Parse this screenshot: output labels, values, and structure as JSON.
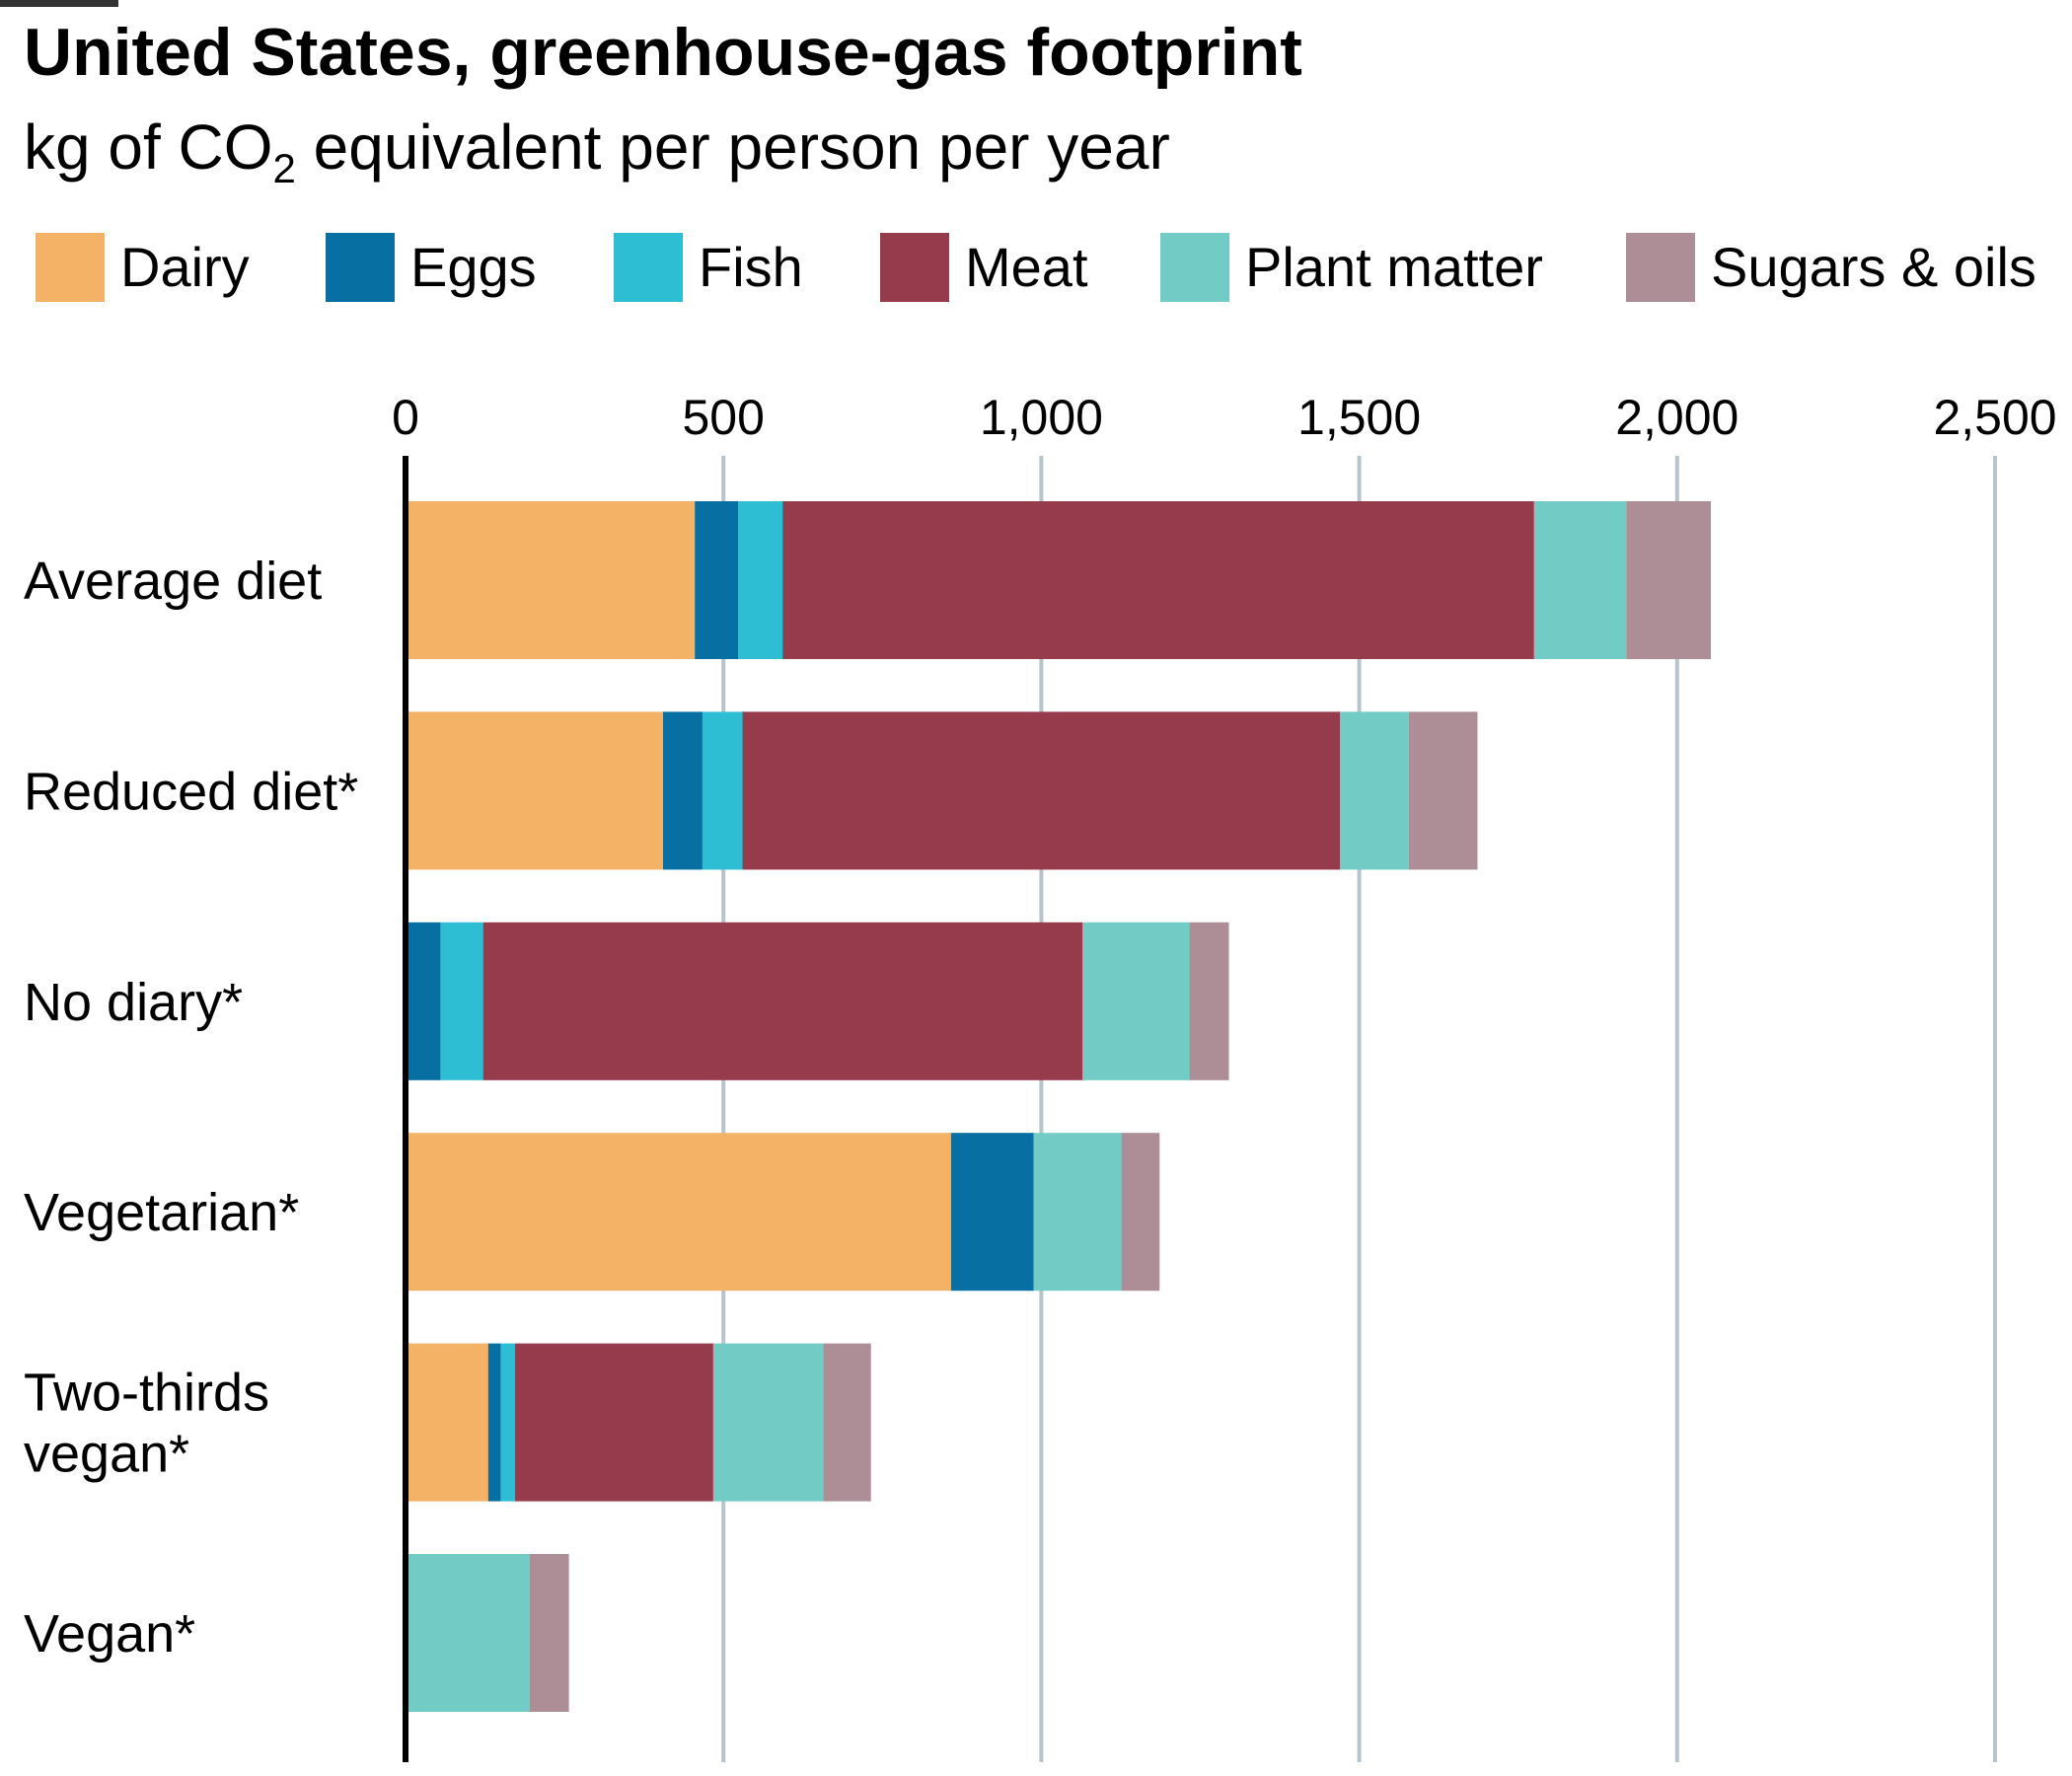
{
  "header": {
    "title": "United States, greenhouse-gas footprint",
    "subtitle_main": "kg of CO",
    "subtitle_sub": "2",
    "subtitle_rest": " equivalent per person per year"
  },
  "colors": {
    "Dairy": "#F3B266",
    "Eggs": "#076FA1",
    "Fish": "#2EBED3",
    "Meat": "#963B4B",
    "Plant matter": "#72CBC4",
    "Sugars & oils": "#AD8E96",
    "grid": "#B6C4CC",
    "axis": "#000000"
  },
  "chart_data": {
    "type": "bar",
    "orientation": "horizontal",
    "stacked": true,
    "title": "United States, greenhouse-gas footprint",
    "subtitle": "kg of CO2 equivalent per person per year",
    "xlim": [
      0,
      2500
    ],
    "x_ticks": [
      0,
      500,
      1000,
      1500,
      2000,
      2500
    ],
    "x_tick_labels": [
      "0",
      "500",
      "1,000",
      "1,500",
      "2,000",
      "2,500"
    ],
    "x_axis_position": "top",
    "grid": true,
    "legend_position": "top",
    "categories": [
      "Average diet",
      "Reduced diet*",
      "No diary*",
      "Vegetarian*",
      "Two-thirds vegan*",
      "Vegan*"
    ],
    "category_lines": [
      [
        "Average diet"
      ],
      [
        "Reduced diet*"
      ],
      [
        "No diary*"
      ],
      [
        "Vegetarian*"
      ],
      [
        "Two-thirds",
        "vegan*"
      ],
      [
        "Vegan*"
      ]
    ],
    "series": [
      {
        "name": "Dairy",
        "values": [
          455,
          405,
          0,
          858,
          130,
          0
        ]
      },
      {
        "name": "Eggs",
        "values": [
          68,
          62,
          55,
          130,
          20,
          0
        ]
      },
      {
        "name": "Fish",
        "values": [
          70,
          63,
          67,
          0,
          22,
          0
        ]
      },
      {
        "name": "Meat",
        "values": [
          1182,
          940,
          943,
          0,
          312,
          0
        ]
      },
      {
        "name": "Plant matter",
        "values": [
          145,
          108,
          168,
          138,
          173,
          195
        ]
      },
      {
        "name": "Sugars & oils",
        "values": [
          133,
          108,
          62,
          60,
          75,
          62
        ]
      }
    ]
  }
}
